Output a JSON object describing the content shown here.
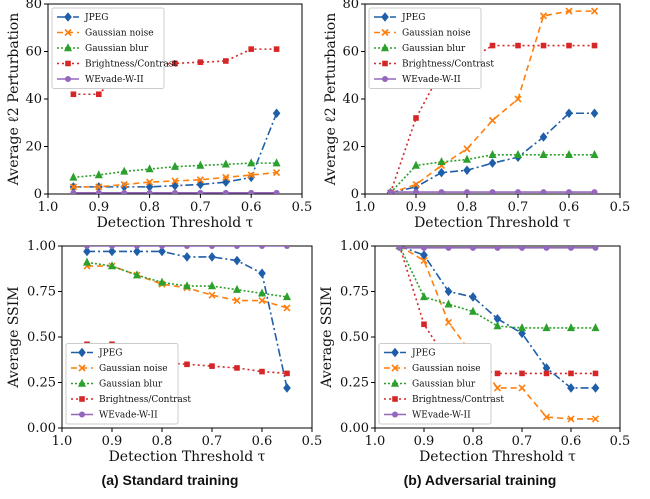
{
  "figure": {
    "caption_a": "(a) Standard training",
    "caption_b": "(b) Adversarial training"
  },
  "chart_data": [
    {
      "type": "line",
      "panel": "top-left",
      "xlabel": "Detection Threshold τ",
      "ylabel": "Average ℓ2 Perturbation",
      "xlim": [
        1.0,
        0.5
      ],
      "ylim": [
        0,
        80
      ],
      "xticks": [
        1.0,
        0.9,
        0.8,
        0.7,
        0.6,
        0.5
      ],
      "yticks": [
        0,
        20,
        40,
        60,
        80
      ],
      "x": [
        0.95,
        0.9,
        0.85,
        0.8,
        0.75,
        0.7,
        0.65,
        0.6,
        0.55
      ],
      "legend": "top-left",
      "grid": false,
      "series": [
        {
          "name": "JPEG",
          "color": "#1f5fa8",
          "dash": "8,3,2,3",
          "marker": "diamond",
          "values": [
            3,
            3,
            3,
            3,
            3.5,
            4,
            5,
            7,
            34
          ]
        },
        {
          "name": "Gaussian noise",
          "color": "#ff7f0e",
          "dash": "6,4",
          "marker": "x",
          "values": [
            3,
            3,
            4,
            5,
            5.5,
            6,
            7,
            8,
            9
          ]
        },
        {
          "name": "Gaussian blur",
          "color": "#2ca02c",
          "dash": "2,2",
          "marker": "triangle",
          "values": [
            7,
            8,
            9.5,
            10.5,
            11.5,
            12,
            12.5,
            13,
            13
          ]
        },
        {
          "name": "Brightness/Contrast",
          "color": "#d62728",
          "dash": "2,3",
          "marker": "square",
          "values": [
            42,
            42,
            53,
            54,
            55,
            55.5,
            56,
            61,
            61
          ]
        },
        {
          "name": "WEvade-W-II",
          "color": "#9467bd",
          "dash": "",
          "marker": "circle",
          "values": [
            0.5,
            0.5,
            0.5,
            0.5,
            0.5,
            0.5,
            0.5,
            0.5,
            0.5
          ]
        }
      ]
    },
    {
      "type": "line",
      "panel": "top-right",
      "xlabel": "Detection Threshold τ",
      "ylabel": "Average ℓ2 Perturbation",
      "xlim": [
        1.0,
        0.5
      ],
      "ylim": [
        0,
        80
      ],
      "xticks": [
        1.0,
        0.9,
        0.8,
        0.7,
        0.6,
        0.5
      ],
      "yticks": [
        0,
        20,
        40,
        60,
        80
      ],
      "x": [
        0.95,
        0.9,
        0.85,
        0.8,
        0.75,
        0.7,
        0.65,
        0.6,
        0.55
      ],
      "legend": "top-left",
      "grid": false,
      "series": [
        {
          "name": "JPEG",
          "color": "#1f5fa8",
          "dash": "8,3,2,3",
          "marker": "diamond",
          "values": [
            0.5,
            3,
            9,
            10,
            13,
            15.5,
            24,
            34,
            34
          ]
        },
        {
          "name": "Gaussian noise",
          "color": "#ff7f0e",
          "dash": "6,4",
          "marker": "x",
          "values": [
            0.5,
            4,
            12,
            19,
            31,
            40,
            75,
            77,
            77
          ]
        },
        {
          "name": "Gaussian blur",
          "color": "#2ca02c",
          "dash": "2,2",
          "marker": "triangle",
          "values": [
            0.5,
            12,
            13.5,
            14.5,
            16.5,
            16.5,
            16.5,
            16.5,
            16.5
          ]
        },
        {
          "name": "Brightness/Contrast",
          "color": "#d62728",
          "dash": "2,3",
          "marker": "square",
          "values": [
            0.5,
            32,
            52,
            56,
            62.5,
            62.5,
            62.5,
            62.5,
            62.5
          ]
        },
        {
          "name": "WEvade-W-II",
          "color": "#9467bd",
          "dash": "",
          "marker": "circle",
          "values": [
            0.8,
            0.8,
            0.8,
            0.8,
            0.8,
            0.8,
            0.8,
            0.8,
            0.8
          ]
        }
      ]
    },
    {
      "type": "line",
      "panel": "bottom-left",
      "xlabel": "Detection Threshold τ",
      "ylabel": "Average SSIM",
      "xlim": [
        1.0,
        0.5
      ],
      "ylim": [
        0.0,
        1.0
      ],
      "xticks": [
        1.0,
        0.9,
        0.8,
        0.7,
        0.6,
        0.5
      ],
      "yticks": [
        0.0,
        0.25,
        0.5,
        0.75,
        1.0
      ],
      "x": [
        0.95,
        0.9,
        0.85,
        0.8,
        0.75,
        0.7,
        0.65,
        0.6,
        0.55
      ],
      "legend": "bottom-left",
      "grid": false,
      "series": [
        {
          "name": "JPEG",
          "color": "#1f5fa8",
          "dash": "8,3,2,3",
          "marker": "diamond",
          "values": [
            0.97,
            0.97,
            0.97,
            0.97,
            0.94,
            0.94,
            0.92,
            0.85,
            0.22
          ]
        },
        {
          "name": "Gaussian noise",
          "color": "#ff7f0e",
          "dash": "6,4",
          "marker": "x",
          "values": [
            0.89,
            0.89,
            0.84,
            0.79,
            0.77,
            0.73,
            0.7,
            0.7,
            0.66
          ]
        },
        {
          "name": "Gaussian blur",
          "color": "#2ca02c",
          "dash": "2,2",
          "marker": "triangle",
          "values": [
            0.91,
            0.89,
            0.84,
            0.8,
            0.78,
            0.78,
            0.76,
            0.74,
            0.72
          ]
        },
        {
          "name": "Brightness/Contrast",
          "color": "#d62728",
          "dash": "2,3",
          "marker": "square",
          "values": [
            0.46,
            0.46,
            0.38,
            0.36,
            0.35,
            0.34,
            0.33,
            0.31,
            0.3
          ]
        },
        {
          "name": "WEvade-W-II",
          "color": "#9467bd",
          "dash": "",
          "marker": "circle",
          "values": [
            1.0,
            1.0,
            1.0,
            1.0,
            1.0,
            1.0,
            1.0,
            1.0,
            1.0
          ]
        }
      ]
    },
    {
      "type": "line",
      "panel": "bottom-right",
      "xlabel": "Detection Threshold τ",
      "ylabel": "Average SSIM",
      "xlim": [
        1.0,
        0.5
      ],
      "ylim": [
        0.0,
        1.0
      ],
      "xticks": [
        1.0,
        0.9,
        0.8,
        0.7,
        0.6,
        0.5
      ],
      "yticks": [
        0.0,
        0.25,
        0.5,
        0.75,
        1.0
      ],
      "x": [
        0.95,
        0.9,
        0.85,
        0.8,
        0.75,
        0.7,
        0.65,
        0.6,
        0.55
      ],
      "legend": "bottom-left",
      "grid": false,
      "series": [
        {
          "name": "JPEG",
          "color": "#1f5fa8",
          "dash": "8,3,2,3",
          "marker": "diamond",
          "values": [
            1.0,
            0.95,
            0.75,
            0.72,
            0.6,
            0.52,
            0.33,
            0.22,
            0.22
          ]
        },
        {
          "name": "Gaussian noise",
          "color": "#ff7f0e",
          "dash": "6,4",
          "marker": "x",
          "values": [
            1.0,
            0.92,
            0.58,
            0.4,
            0.22,
            0.22,
            0.06,
            0.05,
            0.05
          ]
        },
        {
          "name": "Gaussian blur",
          "color": "#2ca02c",
          "dash": "2,2",
          "marker": "triangle",
          "values": [
            1.0,
            0.72,
            0.68,
            0.64,
            0.56,
            0.55,
            0.55,
            0.55,
            0.55
          ]
        },
        {
          "name": "Brightness/Contrast",
          "color": "#d62728",
          "dash": "2,3",
          "marker": "square",
          "values": [
            1.0,
            0.57,
            0.36,
            0.33,
            0.3,
            0.3,
            0.3,
            0.3,
            0.3
          ]
        },
        {
          "name": "WEvade-W-II",
          "color": "#9467bd",
          "dash": "",
          "marker": "circle",
          "values": [
            0.99,
            0.99,
            0.99,
            0.99,
            0.99,
            0.99,
            0.99,
            0.99,
            0.99
          ]
        }
      ]
    }
  ]
}
